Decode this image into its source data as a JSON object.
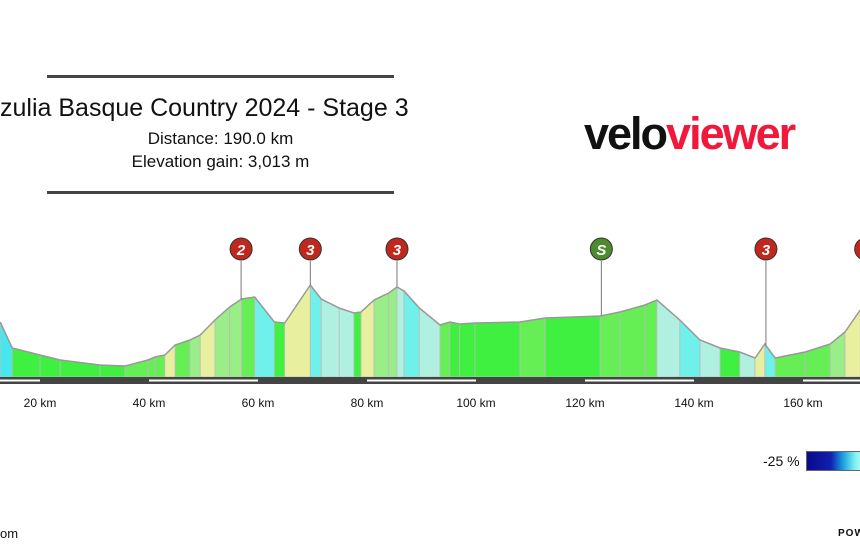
{
  "header": {
    "title": "zulia Basque Country 2024 - Stage 3",
    "distance": "Distance: 190.0 km",
    "elevation_gain": "Elevation gain: 3,013 m"
  },
  "logo": {
    "part1": "velo",
    "part2": "viewer",
    "colors": {
      "part1": "#111111",
      "part2": "#f0193c"
    }
  },
  "chart_data": {
    "type": "area",
    "xlabel": "",
    "ylabel": "",
    "x_unit": "km",
    "x_ticks": [
      {
        "value": 20,
        "label": "20 km"
      },
      {
        "value": 40,
        "label": "40 km"
      },
      {
        "value": 60,
        "label": "60 km"
      },
      {
        "value": 80,
        "label": "80 km"
      },
      {
        "value": 100,
        "label": "100 km"
      },
      {
        "value": 120,
        "label": "120 km"
      },
      {
        "value": 140,
        "label": "140 km"
      },
      {
        "value": 160,
        "label": "160 km"
      }
    ],
    "profile": {
      "distance_km": [
        12.7,
        14.9,
        20,
        23.7,
        31.0,
        35.6,
        39.8,
        41.1,
        42.9,
        44.8,
        47.5,
        49.4,
        52.1,
        54.8,
        57.0,
        59.4,
        63.0,
        64.9,
        69.6,
        71.6,
        74.9,
        77.6,
        78.9,
        81.3,
        84.0,
        85.5,
        86.8,
        89.6,
        93.4,
        95.2,
        97.0,
        99.8,
        108.1,
        112.7,
        122.8,
        126.4,
        131.0,
        133.2,
        137.4,
        141.1,
        144.8,
        148.4,
        151.2,
        153.0,
        154.9,
        160.4,
        165.0,
        167.7,
        170.5
      ],
      "elevation_m": [
        330,
        174,
        132,
        102,
        72,
        66,
        102,
        120,
        132,
        192,
        222,
        252,
        342,
        420,
        468,
        480,
        330,
        324,
        552,
        468,
        414,
        384,
        390,
        462,
        504,
        540,
        516,
        414,
        312,
        330,
        318,
        324,
        330,
        354,
        366,
        390,
        432,
        462,
        342,
        222,
        174,
        150,
        114,
        198,
        114,
        150,
        198,
        270,
        402
      ]
    },
    "markers": [
      {
        "km": 56.9,
        "label": "2",
        "type": "climb",
        "color": "#c0281e"
      },
      {
        "km": 69.6,
        "label": "3",
        "type": "climb",
        "color": "#c0281e"
      },
      {
        "km": 85.5,
        "label": "3",
        "type": "climb",
        "color": "#c0281e"
      },
      {
        "km": 123.0,
        "label": "S",
        "type": "sprint",
        "color": "#4e8a2e"
      },
      {
        "km": 153.2,
        "label": "3",
        "type": "climb",
        "color": "#c0281e"
      },
      {
        "km": 171.5,
        "label": "",
        "type": "climb",
        "color": "#c0281e"
      }
    ],
    "legend": {
      "label": "-25 %"
    }
  },
  "footer": {
    "left": "om",
    "right": "POW"
  }
}
